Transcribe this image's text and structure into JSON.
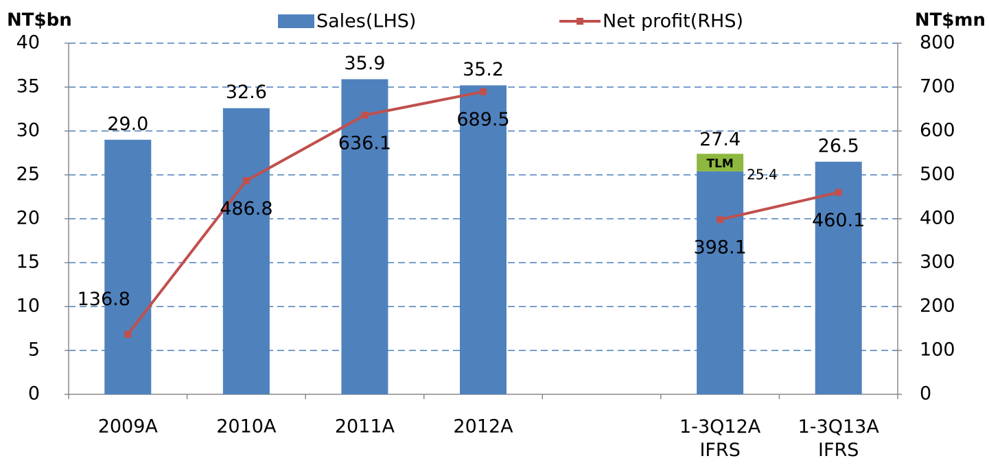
{
  "chart_data": {
    "type": "bar_line",
    "y_axis_title": "NT$bn",
    "y2_axis_title": "NT$mn",
    "categories": [
      "2009A",
      "2010A",
      "2011A",
      "2012A",
      null,
      "1-3Q12A\nIFRS",
      "1-3Q13A\nIFRS"
    ],
    "series": [
      {
        "name": "Sales(LHS)",
        "type": "bar",
        "color": "#4f81bd",
        "axis": "y",
        "values": [
          29.0,
          32.6,
          35.9,
          35.2,
          null,
          25.4,
          26.5
        ],
        "value_labels": [
          "29.0",
          "32.6",
          "35.9",
          "35.2",
          null,
          "25.4",
          "26.5"
        ]
      },
      {
        "name": "Net profit(RHS)",
        "type": "line",
        "color": "#c0504d",
        "axis": "y2",
        "values": [
          136.8,
          486.8,
          636.1,
          689.5,
          null,
          398.1,
          460.1
        ]
      }
    ],
    "segment": {
      "name": "TLM",
      "color": "#8db83f",
      "values": [
        null,
        null,
        null,
        null,
        null,
        2.0,
        null
      ]
    },
    "stack_labels": [
      null,
      null,
      null,
      null,
      null,
      "27.4",
      null
    ],
    "ylim": [
      0,
      40
    ],
    "yticks": [
      0,
      5,
      10,
      15,
      20,
      25,
      30,
      35,
      40
    ],
    "y2lim": [
      0,
      800
    ],
    "y2ticks": [
      0,
      100,
      200,
      300,
      400,
      500,
      600,
      700,
      800
    ],
    "grid": true,
    "legend": "top"
  }
}
